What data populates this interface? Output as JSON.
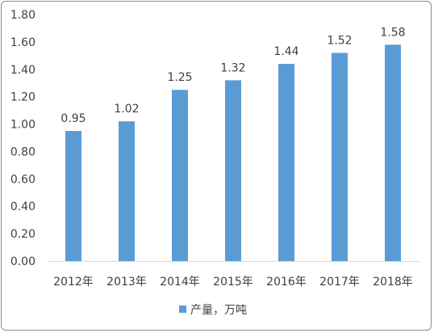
{
  "chart_data": {
    "type": "bar",
    "categories": [
      "2012年",
      "2013年",
      "2014年",
      "2015年",
      "2016年",
      "2017年",
      "2018年"
    ],
    "series": [
      {
        "name": "产量，万吨",
        "values": [
          0.95,
          1.02,
          1.25,
          1.32,
          1.44,
          1.52,
          1.58
        ],
        "color": "#5b9bd5"
      }
    ],
    "data_labels": [
      "0.95",
      "1.02",
      "1.25",
      "1.32",
      "1.44",
      "1.52",
      "1.58"
    ],
    "y_ticks": [
      "0.00",
      "0.20",
      "0.40",
      "0.60",
      "0.80",
      "1.00",
      "1.20",
      "1.40",
      "1.60",
      "1.80"
    ],
    "ylim": [
      0,
      1.8
    ],
    "y_step": 0.2,
    "title": "",
    "xlabel": "",
    "ylabel": "",
    "grid": false,
    "legend_position": "bottom"
  }
}
